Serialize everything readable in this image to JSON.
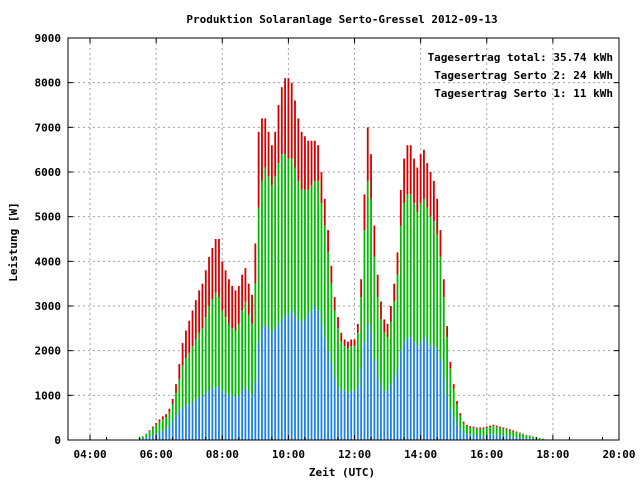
{
  "chart_data": {
    "type": "bar",
    "title": "Produktion Solaranlage Serto-Gressel 2012-09-13",
    "xlabel": "Zeit (UTC)",
    "ylabel": "Leistung [W]",
    "xlim": [
      3.3333,
      20.0
    ],
    "ylim": [
      0,
      9000
    ],
    "x_ticks": [
      "04:00",
      "06:00",
      "08:00",
      "10:00",
      "12:00",
      "14:00",
      "16:00",
      "18:00",
      "20:00"
    ],
    "y_ticks": [
      "0",
      "1000",
      "2000",
      "3000",
      "4000",
      "5000",
      "6000",
      "7000",
      "8000",
      "9000"
    ],
    "grid": true,
    "bar_type": "stacked",
    "legend_position": "top-right",
    "legend": [
      {
        "label": "Tagesertrag total: 35.74 kWh",
        "color": "#d40000"
      },
      {
        "label": "Tagesertrag Serto 2: 24 kWh",
        "color": "#00bb00"
      },
      {
        "label": "Tagesertrag Serto 1: 11 kWh",
        "color": "#1a80e6"
      }
    ],
    "x": [
      5.5,
      5.6,
      5.7,
      5.8,
      5.9,
      6.0,
      6.1,
      6.2,
      6.3,
      6.4,
      6.5,
      6.6,
      6.7,
      6.8,
      6.9,
      7.0,
      7.1,
      7.2,
      7.3,
      7.4,
      7.5,
      7.6,
      7.7,
      7.8,
      7.9,
      8.0,
      8.1,
      8.2,
      8.3,
      8.4,
      8.5,
      8.6,
      8.7,
      8.8,
      8.9,
      9.0,
      9.1,
      9.2,
      9.3,
      9.4,
      9.5,
      9.6,
      9.7,
      9.8,
      9.9,
      10.0,
      10.1,
      10.2,
      10.3,
      10.4,
      10.5,
      10.6,
      10.7,
      10.8,
      10.9,
      11.0,
      11.1,
      11.2,
      11.3,
      11.4,
      11.5,
      11.6,
      11.7,
      11.8,
      11.9,
      12.0,
      12.1,
      12.2,
      12.3,
      12.4,
      12.5,
      12.6,
      12.7,
      12.8,
      12.9,
      13.0,
      13.1,
      13.2,
      13.3,
      13.4,
      13.5,
      13.6,
      13.7,
      13.8,
      13.9,
      14.0,
      14.1,
      14.2,
      14.3,
      14.4,
      14.5,
      14.6,
      14.7,
      14.8,
      14.9,
      15.0,
      15.1,
      15.2,
      15.3,
      15.4,
      15.5,
      15.6,
      15.7,
      15.8,
      15.9,
      16.0,
      16.1,
      16.2,
      16.3,
      16.4,
      16.5,
      16.6,
      16.7,
      16.8,
      16.9,
      17.0,
      17.1,
      17.2,
      17.3,
      17.4,
      17.5,
      17.6,
      17.7,
      17.8,
      17.9,
      18.0
    ],
    "series": [
      {
        "name": "Tagesertrag Serto 1: 11 kWh",
        "color": "#1a80e6",
        "values": [
          20,
          30,
          50,
          80,
          110,
          140,
          170,
          210,
          260,
          320,
          450,
          550,
          650,
          720,
          780,
          800,
          850,
          900,
          950,
          1000,
          1050,
          1100,
          1150,
          1200,
          1200,
          1100,
          1050,
          1000,
          1000,
          950,
          1000,
          1100,
          1200,
          1100,
          1000,
          1300,
          2200,
          2500,
          2600,
          2500,
          2400,
          2500,
          2600,
          2700,
          2800,
          2800,
          2900,
          2800,
          2700,
          2600,
          2700,
          2800,
          2900,
          3000,
          2900,
          2600,
          2300,
          2000,
          1700,
          1400,
          1200,
          1100,
          1100,
          1050,
          1100,
          1100,
          1200,
          1600,
          2200,
          2600,
          2400,
          1800,
          1400,
          1200,
          1100,
          1100,
          1250,
          1400,
          1600,
          2000,
          2200,
          2300,
          2300,
          2200,
          2100,
          2200,
          2300,
          2200,
          2100,
          2100,
          2000,
          1800,
          1400,
          1000,
          700,
          500,
          350,
          250,
          170,
          140,
          120,
          110,
          100,
          100,
          100,
          110,
          120,
          130,
          120,
          110,
          100,
          90,
          80,
          70,
          60,
          50,
          40,
          35,
          30,
          25,
          20,
          15,
          10,
          5,
          0,
          0
        ]
      },
      {
        "name": "Tagesertrag Serto 2: 24 kWh",
        "color": "#00bb00",
        "values": [
          30,
          50,
          80,
          120,
          160,
          200,
          240,
          260,
          250,
          300,
          350,
          500,
          700,
          950,
          1050,
          1150,
          1250,
          1350,
          1450,
          1500,
          1700,
          1900,
          2000,
          2100,
          2000,
          1800,
          1700,
          1600,
          1500,
          1500,
          1600,
          1800,
          1900,
          1700,
          1600,
          2200,
          3000,
          3300,
          3500,
          3400,
          3300,
          3400,
          3600,
          3700,
          3600,
          3500,
          3400,
          3300,
          3100,
          3000,
          2900,
          2800,
          2800,
          2800,
          2900,
          2700,
          2500,
          2200,
          1800,
          1500,
          1300,
          1100,
          1000,
          1000,
          1000,
          1000,
          1200,
          1600,
          2500,
          3200,
          3000,
          2300,
          1800,
          1500,
          1300,
          1200,
          1400,
          1700,
          2100,
          2800,
          3100,
          3200,
          3200,
          3100,
          3000,
          3100,
          3100,
          3000,
          2900,
          2800,
          2600,
          2300,
          1800,
          1300,
          900,
          650,
          450,
          300,
          200,
          170,
          160,
          160,
          150,
          150,
          150,
          160,
          170,
          180,
          170,
          160,
          150,
          140,
          130,
          120,
          110,
          100,
          90,
          70,
          60,
          50,
          40,
          30,
          20,
          10,
          5,
          0
        ]
      },
      {
        "name": "Tagesertrag total: 35.74 kWh",
        "color": "#d40000",
        "values": [
          0,
          0,
          10,
          20,
          30,
          40,
          50,
          60,
          70,
          80,
          120,
          200,
          350,
          500,
          620,
          720,
          800,
          880,
          950,
          1000,
          1050,
          1100,
          1150,
          1200,
          1300,
          1100,
          1050,
          1000,
          950,
          900,
          850,
          800,
          750,
          700,
          650,
          900,
          1700,
          1400,
          1100,
          1000,
          900,
          1000,
          1300,
          1500,
          1700,
          1800,
          1700,
          1500,
          1400,
          1300,
          1200,
          1100,
          1000,
          900,
          800,
          700,
          600,
          500,
          400,
          300,
          250,
          200,
          150,
          150,
          150,
          150,
          200,
          400,
          800,
          1200,
          1000,
          700,
          500,
          400,
          300,
          300,
          350,
          400,
          500,
          800,
          1000,
          1100,
          1100,
          1000,
          1000,
          1100,
          1100,
          1000,
          1000,
          900,
          800,
          600,
          400,
          250,
          150,
          100,
          70,
          50,
          40,
          30,
          30,
          30,
          30,
          30,
          30,
          30,
          30,
          30,
          30,
          30,
          30,
          30,
          30,
          25,
          20,
          15,
          10,
          10,
          10,
          5,
          0,
          0,
          0,
          0,
          0,
          0
        ]
      }
    ]
  }
}
